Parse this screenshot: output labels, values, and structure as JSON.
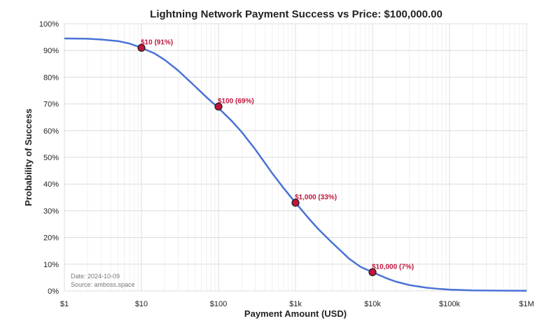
{
  "chart_data": {
    "type": "line",
    "title": "Lightning Network Payment Success vs Price: $100,000.00",
    "xlabel": "Payment Amount (USD)",
    "ylabel": "Probability of Success",
    "x_scale": "log",
    "xlim": [
      1,
      1000000
    ],
    "ylim": [
      0,
      100
    ],
    "x_ticks": [
      {
        "value": 1,
        "label": "$1"
      },
      {
        "value": 10,
        "label": "$10"
      },
      {
        "value": 100,
        "label": "$100"
      },
      {
        "value": 1000,
        "label": "$1k"
      },
      {
        "value": 10000,
        "label": "$10k"
      },
      {
        "value": 100000,
        "label": "$100k"
      },
      {
        "value": 1000000,
        "label": "$1M"
      }
    ],
    "y_ticks": [
      {
        "value": 0,
        "label": "0%"
      },
      {
        "value": 10,
        "label": "10%"
      },
      {
        "value": 20,
        "label": "20%"
      },
      {
        "value": 30,
        "label": "30%"
      },
      {
        "value": 40,
        "label": "40%"
      },
      {
        "value": 50,
        "label": "50%"
      },
      {
        "value": 60,
        "label": "60%"
      },
      {
        "value": 70,
        "label": "70%"
      },
      {
        "value": 80,
        "label": "80%"
      },
      {
        "value": 90,
        "label": "90%"
      },
      {
        "value": 100,
        "label": "100%"
      }
    ],
    "grid": true,
    "series": [
      {
        "color": "#4a72d6",
        "points": [
          [
            1,
            94.5
          ],
          [
            2,
            94.4
          ],
          [
            3,
            94.1
          ],
          [
            5,
            93.5
          ],
          [
            7,
            92.6
          ],
          [
            10,
            91.0
          ],
          [
            15,
            88.8
          ],
          [
            20,
            86.5
          ],
          [
            30,
            82.5
          ],
          [
            50,
            76.5
          ],
          [
            70,
            72.5
          ],
          [
            100,
            68.5
          ],
          [
            150,
            63.5
          ],
          [
            200,
            59.5
          ],
          [
            300,
            53.0
          ],
          [
            500,
            44.0
          ],
          [
            700,
            38.5
          ],
          [
            1000,
            33.0
          ],
          [
            1500,
            27.0
          ],
          [
            2000,
            23.0
          ],
          [
            3000,
            18.0
          ],
          [
            5000,
            12.0
          ],
          [
            7000,
            9.0
          ],
          [
            10000,
            7.0
          ],
          [
            15000,
            4.8
          ],
          [
            20000,
            3.5
          ],
          [
            30000,
            2.2
          ],
          [
            50000,
            1.2
          ],
          [
            70000,
            0.8
          ],
          [
            100000,
            0.5
          ],
          [
            200000,
            0.2
          ],
          [
            500000,
            0.1
          ],
          [
            1000000,
            0.05
          ]
        ]
      }
    ],
    "markers": [
      {
        "x": 10,
        "y": 91,
        "label": "$10 (91%)"
      },
      {
        "x": 100,
        "y": 69,
        "label": "$100 (69%)"
      },
      {
        "x": 1000,
        "y": 33,
        "label": "$1,000 (33%)"
      },
      {
        "x": 10000,
        "y": 7,
        "label": "$10,000 (7%)"
      }
    ],
    "marker_color": "#c0143c",
    "notes": [
      "Date: 2024-10-09",
      "Source: amboss.space"
    ]
  }
}
